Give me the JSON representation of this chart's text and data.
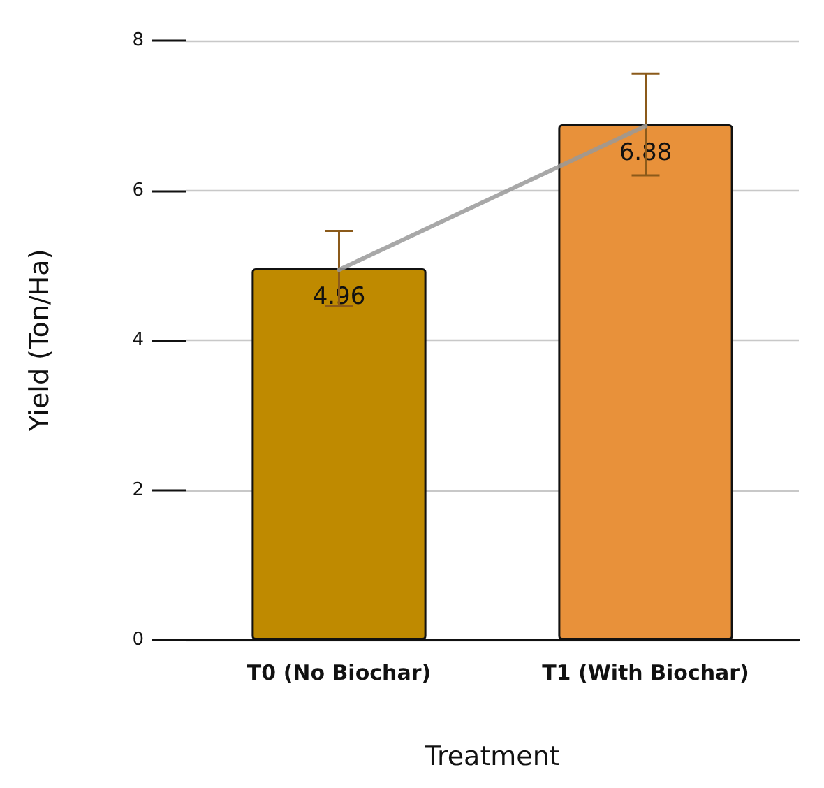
{
  "chart_data": {
    "type": "bar",
    "xlabel": "Treatment",
    "ylabel": "Yield (Ton/Ha)",
    "categories": [
      "T0 (No Biochar)",
      "T1 (With Biochar)"
    ],
    "values": [
      4.96,
      6.88
    ],
    "colors": [
      "#bf8a00",
      "#e8913a"
    ],
    "errors": [
      0.5,
      0.68
    ],
    "value_labels": [
      "4.96",
      "6.88"
    ],
    "ylim": [
      0,
      8
    ],
    "yticks": [
      0,
      2,
      4,
      6,
      8
    ],
    "grid": "y",
    "series": [
      {
        "type": "line",
        "color": "#999999",
        "x": [
          "T0 (No Biochar)",
          "T1 (With Biochar)"
        ],
        "values": [
          4.94,
          6.86
        ]
      }
    ]
  }
}
